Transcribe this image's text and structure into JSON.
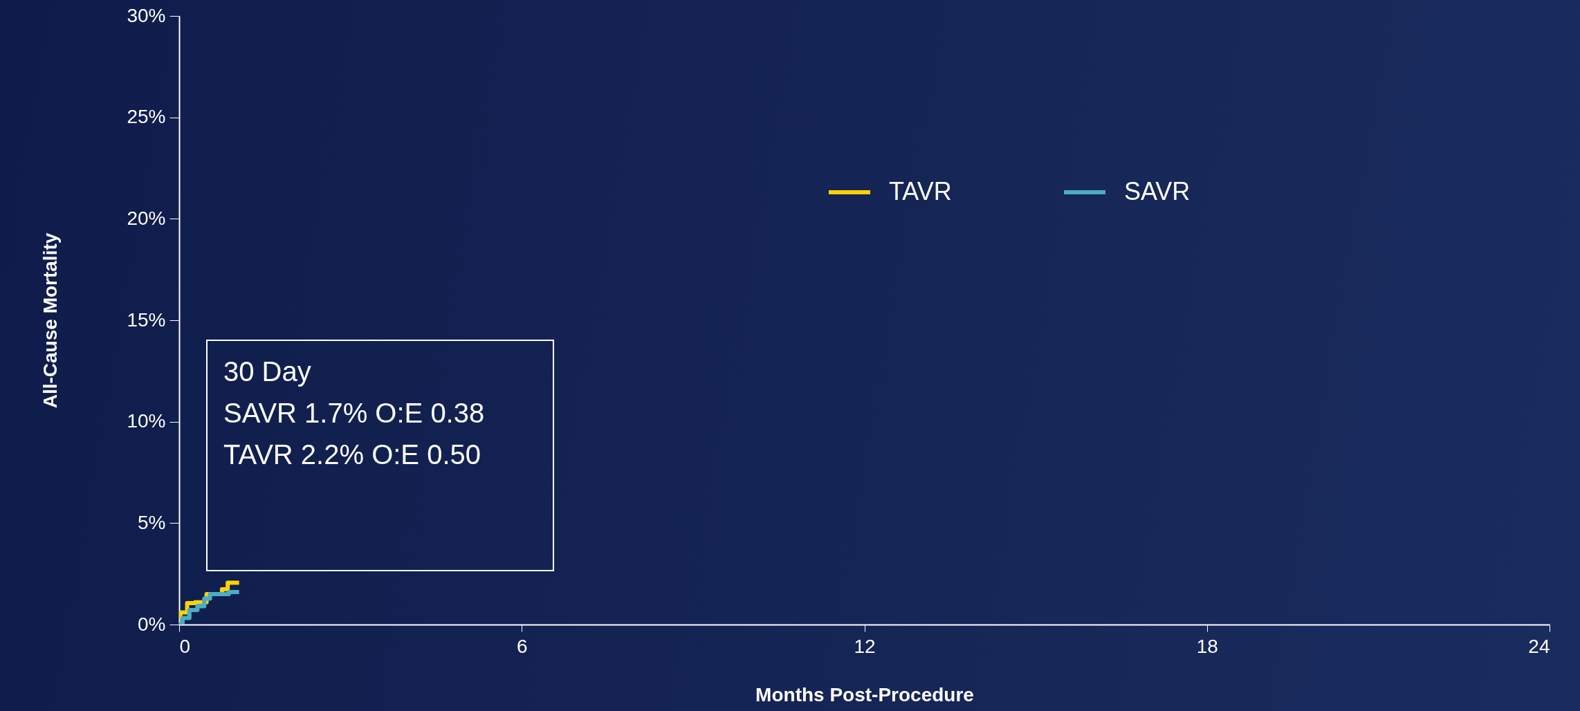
{
  "chart_data": {
    "type": "step",
    "xlabel": "Months Post-Procedure",
    "ylabel": "All-Cause Mortality",
    "xlim": [
      0,
      24
    ],
    "xticks": [
      0,
      6,
      12,
      18,
      24
    ],
    "ylim": [
      0,
      30
    ],
    "yticks": [
      {
        "value": 0,
        "label": "0%"
      },
      {
        "value": 5,
        "label": "5%"
      },
      {
        "value": 10,
        "label": "10%"
      },
      {
        "value": 15,
        "label": "15%"
      },
      {
        "value": 20,
        "label": "20%"
      },
      {
        "value": 25,
        "label": "25%"
      },
      {
        "value": 30,
        "label": "30%"
      }
    ],
    "grid": false,
    "legend": "top right",
    "line_style": "solid",
    "marker": "none",
    "annotations": [
      "30 Day",
      "SAVR 1.7%   O:E 0.38",
      "TAVR 2.2%   O:E 0.50"
    ],
    "series": [
      {
        "name": "TAVR",
        "color": "#ffd200",
        "x": [
          0,
          0.02,
          0.14,
          0.28,
          0.48,
          0.75,
          0.85,
          1.05
        ],
        "values": [
          0.37,
          0.6,
          1.06,
          1.1,
          1.5,
          1.74,
          2.06,
          2.06
        ]
      },
      {
        "name": "SAVR",
        "color": "#4bacc6",
        "x": [
          0,
          0.06,
          0.18,
          0.32,
          0.44,
          0.54,
          0.83,
          0.87,
          1.05
        ],
        "values": [
          0,
          0.32,
          0.72,
          0.9,
          1.28,
          1.5,
          1.5,
          1.6,
          1.6
        ]
      }
    ]
  }
}
